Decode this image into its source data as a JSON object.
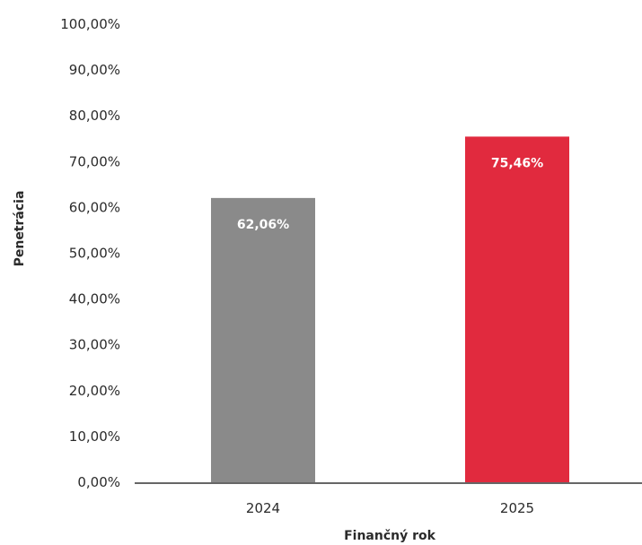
{
  "chart_data": {
    "type": "bar",
    "categories": [
      "2024",
      "2025"
    ],
    "values": [
      62.06,
      75.46
    ],
    "data_labels": [
      "62,06%",
      "75,46%"
    ],
    "bar_colors": [
      "#8a8a8a",
      "#e12a3e"
    ],
    "xlabel": "Finančný rok",
    "ylabel": "Penetrácia",
    "ylim": [
      0,
      100
    ],
    "y_ticks": [
      0,
      10,
      20,
      30,
      40,
      50,
      60,
      70,
      80,
      90,
      100
    ],
    "y_tick_labels": [
      "0,00%",
      "10,00%",
      "20,00%",
      "30,00%",
      "40,00%",
      "50,00%",
      "60,00%",
      "70,00%",
      "80,00%",
      "90,00%",
      "100,00%"
    ],
    "grid": false,
    "legend": "none"
  }
}
